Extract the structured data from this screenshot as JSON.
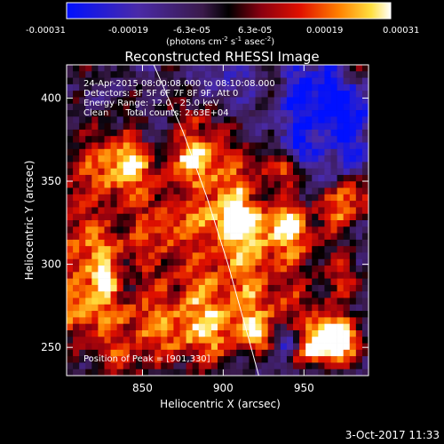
{
  "chart_data": {
    "type": "heatmap",
    "title": "Reconstructed RHESSI Image",
    "xlabel": "Heliocentric X (arcsec)",
    "ylabel": "Heliocentric Y (arcsec)",
    "x_range": [
      803,
      990
    ],
    "y_range": [
      233,
      420
    ],
    "x_ticks": [
      850,
      900,
      950
    ],
    "y_ticks": [
      250,
      300,
      350,
      400
    ],
    "colorbar": {
      "range": [
        -0.00031,
        0.00031
      ],
      "ticks": [
        "-0.00031",
        "-0.00019",
        "-6.3e-05",
        "6.3e-05",
        "0.00019",
        "0.00031"
      ],
      "units_prefix": "(photons cm",
      "units_sup1": "-2",
      "units_mid1": " s",
      "units_sup2": "-1",
      "units_mid2": " asec",
      "units_sup3": "-2",
      "units_suffix": ")"
    },
    "annotations": [
      "24-Apr-2015 08:00:08.000 to 08:10:08.000",
      "Detectors: 3F 5F 6F 7F 8F 9F, Att 0",
      "Energy Range: 12.0 - 25.0 keV",
      "Clean      Total counts: 2.63E+04"
    ],
    "peak_label": "Position of Peak = [901,330]",
    "peak": [
      901,
      330
    ],
    "limb_curve": [
      [
        857,
        420
      ],
      [
        875,
        380
      ],
      [
        890,
        340
      ],
      [
        903,
        300
      ],
      [
        913,
        265
      ],
      [
        922,
        233
      ]
    ],
    "grid": false,
    "legend": "none"
  },
  "timestamp": "3-Oct-2017 11:33"
}
